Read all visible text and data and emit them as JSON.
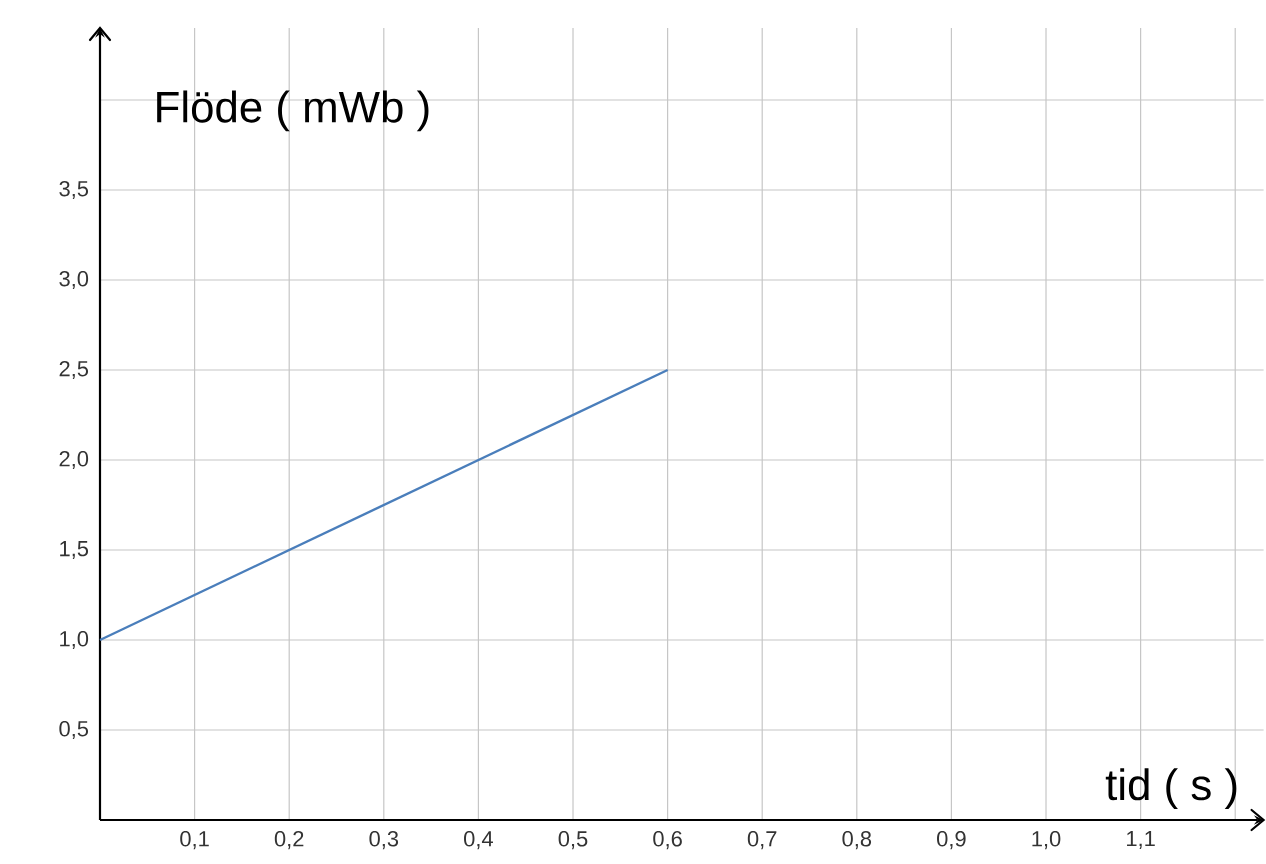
{
  "chart_data": {
    "type": "line",
    "xlabel": "tid ( s )",
    "ylabel": "Flöde ( mWb )",
    "x": [
      0,
      0.6
    ],
    "series": [
      {
        "color": "#4a7ebb",
        "values": [
          1.0,
          2.5
        ]
      }
    ],
    "xlim": [
      0,
      1.23
    ],
    "ylim": [
      0,
      4.4
    ],
    "xticks": [
      {
        "value": 0.1,
        "label": "0,1"
      },
      {
        "value": 0.2,
        "label": "0,2"
      },
      {
        "value": 0.3,
        "label": "0,3"
      },
      {
        "value": 0.4,
        "label": "0,4"
      },
      {
        "value": 0.5,
        "label": "0,5"
      },
      {
        "value": 0.6,
        "label": "0,6"
      },
      {
        "value": 0.7,
        "label": "0,7"
      },
      {
        "value": 0.8,
        "label": "0,8"
      },
      {
        "value": 0.9,
        "label": "0,9"
      },
      {
        "value": 1.0,
        "label": "1,0"
      },
      {
        "value": 1.1,
        "label": "1,1"
      },
      {
        "value": 1.2,
        "label": null
      }
    ],
    "yticks": [
      {
        "value": 0.5,
        "label": "0,5"
      },
      {
        "value": 1.0,
        "label": "1,0"
      },
      {
        "value": 1.5,
        "label": "1,5"
      },
      {
        "value": 2.0,
        "label": "2,0"
      },
      {
        "value": 2.5,
        "label": "2,5"
      },
      {
        "value": 3.0,
        "label": "3,0"
      },
      {
        "value": 3.5,
        "label": "3,5"
      },
      {
        "value": 4.0,
        "label": null
      }
    ],
    "grid": true,
    "marker": "none",
    "line_style": "solid"
  }
}
